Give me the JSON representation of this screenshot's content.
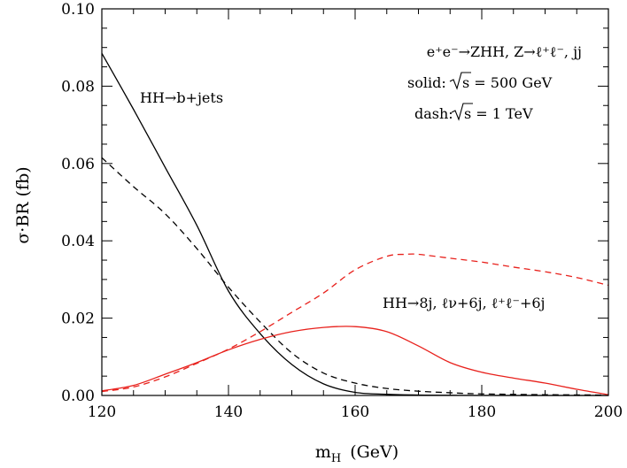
{
  "chart_data": {
    "type": "line",
    "title": "",
    "xlabel": "m",
    "xlabel_sub": "H",
    "xlabel_unit": "(GeV)",
    "ylabel": "σ·BR (fb)",
    "xlim": [
      120,
      200
    ],
    "ylim": [
      0,
      0.1
    ],
    "x_ticks": [
      120,
      140,
      160,
      180,
      200
    ],
    "x_tick_labels": [
      "120",
      "140",
      "160",
      "180",
      "200"
    ],
    "y_ticks": [
      0,
      0.02,
      0.04,
      0.06,
      0.08,
      0.1
    ],
    "y_tick_labels": [
      "0.00",
      "0.02",
      "0.04",
      "0.06",
      "0.08",
      "0.10"
    ],
    "grid": false,
    "series": [
      {
        "color": "#000000",
        "dash": "solid",
        "x": [
          120,
          125,
          130,
          135,
          140,
          145,
          150,
          155,
          160,
          165,
          170,
          175,
          180,
          190,
          200
        ],
        "y": [
          0.0885,
          0.074,
          0.059,
          0.044,
          0.027,
          0.016,
          0.008,
          0.003,
          0.0008,
          0.0003,
          0.0001,
          5e-05,
          0,
          0,
          0
        ]
      },
      {
        "color": "#000000",
        "dash": "dashed",
        "x": [
          120,
          125,
          130,
          135,
          140,
          145,
          150,
          155,
          160,
          165,
          170,
          175,
          180,
          190,
          200
        ],
        "y": [
          0.0615,
          0.054,
          0.047,
          0.038,
          0.028,
          0.019,
          0.011,
          0.0058,
          0.0032,
          0.0018,
          0.0011,
          0.0007,
          0.0004,
          0.0002,
          0.0001
        ]
      },
      {
        "color": "#e8211c",
        "dash": "solid",
        "x": [
          120,
          125,
          130,
          135,
          140,
          145,
          150,
          155,
          160,
          165,
          170,
          175,
          180,
          185,
          190,
          195,
          200
        ],
        "y": [
          0.0012,
          0.0026,
          0.0055,
          0.0085,
          0.0118,
          0.0145,
          0.0165,
          0.0176,
          0.0178,
          0.0165,
          0.0128,
          0.0085,
          0.006,
          0.0045,
          0.0032,
          0.0016,
          0.0002
        ]
      },
      {
        "color": "#e8211c",
        "dash": "dashed",
        "x": [
          120,
          125,
          130,
          135,
          140,
          145,
          150,
          155,
          160,
          165,
          168,
          170,
          175,
          180,
          185,
          190,
          195,
          200
        ],
        "y": [
          0.001,
          0.0022,
          0.0048,
          0.0083,
          0.012,
          0.0165,
          0.0215,
          0.0265,
          0.0325,
          0.036,
          0.0365,
          0.0365,
          0.0355,
          0.0345,
          0.0332,
          0.032,
          0.0305,
          0.0285
        ]
      }
    ],
    "annotations": {
      "process": "e⁺e⁻→ZHH, Z→ℓ⁺ℓ⁻, jj",
      "solid_prefix": "solid:",
      "solid_value": "s = 500 GeV",
      "dash_prefix": "dash:",
      "dash_value": "s = 1 TeV",
      "hh_bjets": "HH→b+jets",
      "hh_8j": "HH→8j, ℓν+6j, ℓ⁺ℓ⁻+6j"
    }
  }
}
